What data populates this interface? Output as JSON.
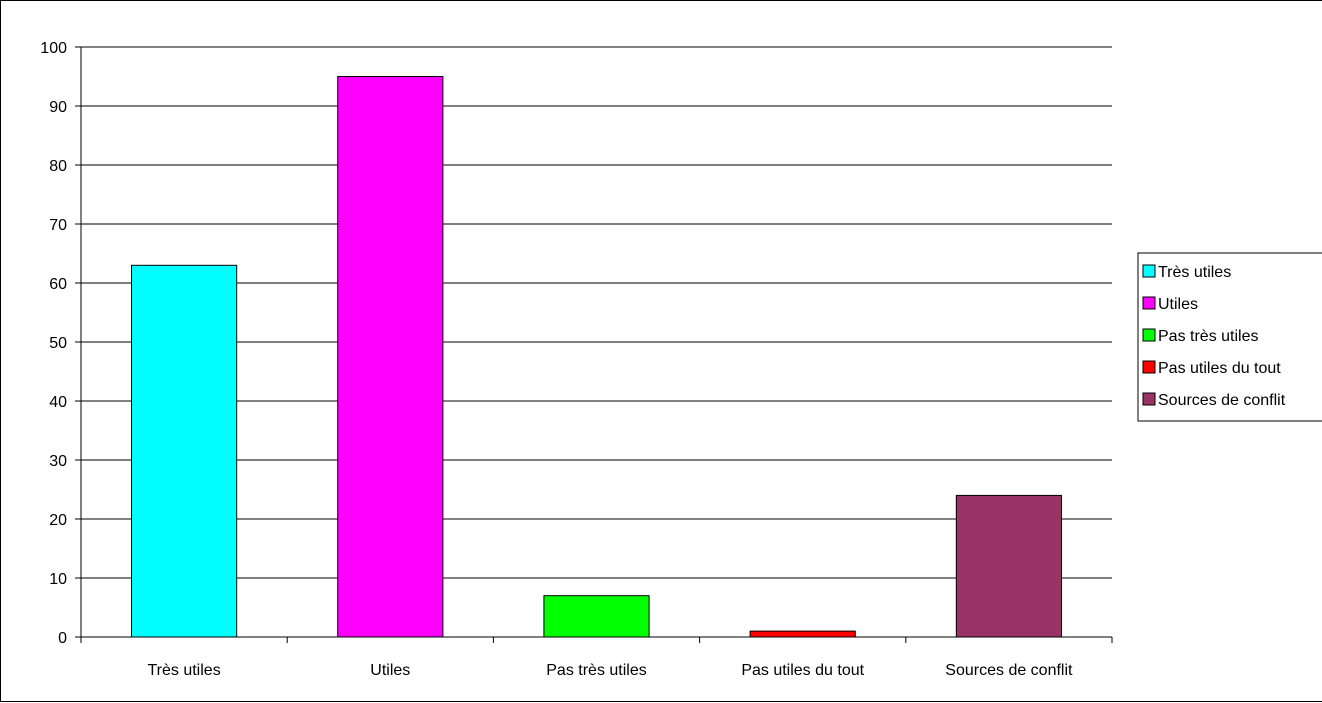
{
  "chart_data": {
    "type": "bar",
    "title": "",
    "xlabel": "",
    "ylabel": "",
    "categories": [
      "Très utiles",
      "Utiles",
      "Pas très utiles",
      "Pas utiles du tout",
      "Sources de conflit"
    ],
    "values": [
      63,
      95,
      7,
      1,
      24
    ],
    "colors": [
      "#00FFFF",
      "#FF00FF",
      "#00FF00",
      "#FF0000",
      "#993366"
    ],
    "ylim": [
      0,
      100
    ],
    "yticks": [
      0,
      10,
      20,
      30,
      40,
      50,
      60,
      70,
      80,
      90,
      100
    ],
    "grid": true,
    "legend": {
      "placement": "right",
      "entries": [
        "Très utiles",
        "Utiles",
        "Pas très utiles",
        "Pas utiles du tout",
        "Sources de conflit"
      ]
    }
  }
}
